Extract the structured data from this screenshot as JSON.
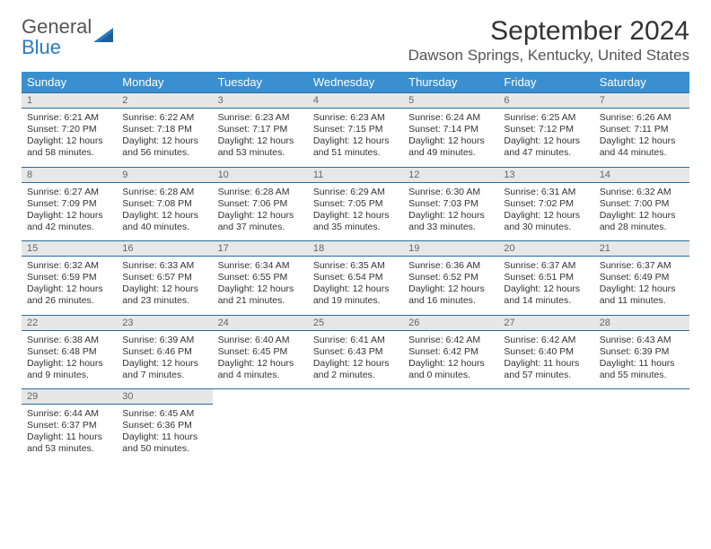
{
  "brand": {
    "name_part1": "General",
    "name_part2": "Blue"
  },
  "title": "September 2024",
  "location": "Dawson Springs, Kentucky, United States",
  "header_color": "#3a8fd0",
  "daynum_bg": "#e7e7e7",
  "border_color": "#2a6b9e",
  "days_of_week": [
    "Sunday",
    "Monday",
    "Tuesday",
    "Wednesday",
    "Thursday",
    "Friday",
    "Saturday"
  ],
  "weeks": [
    [
      {
        "day": "1",
        "sunrise": "Sunrise: 6:21 AM",
        "sunset": "Sunset: 7:20 PM",
        "daylight1": "Daylight: 12 hours",
        "daylight2": "and 58 minutes."
      },
      {
        "day": "2",
        "sunrise": "Sunrise: 6:22 AM",
        "sunset": "Sunset: 7:18 PM",
        "daylight1": "Daylight: 12 hours",
        "daylight2": "and 56 minutes."
      },
      {
        "day": "3",
        "sunrise": "Sunrise: 6:23 AM",
        "sunset": "Sunset: 7:17 PM",
        "daylight1": "Daylight: 12 hours",
        "daylight2": "and 53 minutes."
      },
      {
        "day": "4",
        "sunrise": "Sunrise: 6:23 AM",
        "sunset": "Sunset: 7:15 PM",
        "daylight1": "Daylight: 12 hours",
        "daylight2": "and 51 minutes."
      },
      {
        "day": "5",
        "sunrise": "Sunrise: 6:24 AM",
        "sunset": "Sunset: 7:14 PM",
        "daylight1": "Daylight: 12 hours",
        "daylight2": "and 49 minutes."
      },
      {
        "day": "6",
        "sunrise": "Sunrise: 6:25 AM",
        "sunset": "Sunset: 7:12 PM",
        "daylight1": "Daylight: 12 hours",
        "daylight2": "and 47 minutes."
      },
      {
        "day": "7",
        "sunrise": "Sunrise: 6:26 AM",
        "sunset": "Sunset: 7:11 PM",
        "daylight1": "Daylight: 12 hours",
        "daylight2": "and 44 minutes."
      }
    ],
    [
      {
        "day": "8",
        "sunrise": "Sunrise: 6:27 AM",
        "sunset": "Sunset: 7:09 PM",
        "daylight1": "Daylight: 12 hours",
        "daylight2": "and 42 minutes."
      },
      {
        "day": "9",
        "sunrise": "Sunrise: 6:28 AM",
        "sunset": "Sunset: 7:08 PM",
        "daylight1": "Daylight: 12 hours",
        "daylight2": "and 40 minutes."
      },
      {
        "day": "10",
        "sunrise": "Sunrise: 6:28 AM",
        "sunset": "Sunset: 7:06 PM",
        "daylight1": "Daylight: 12 hours",
        "daylight2": "and 37 minutes."
      },
      {
        "day": "11",
        "sunrise": "Sunrise: 6:29 AM",
        "sunset": "Sunset: 7:05 PM",
        "daylight1": "Daylight: 12 hours",
        "daylight2": "and 35 minutes."
      },
      {
        "day": "12",
        "sunrise": "Sunrise: 6:30 AM",
        "sunset": "Sunset: 7:03 PM",
        "daylight1": "Daylight: 12 hours",
        "daylight2": "and 33 minutes."
      },
      {
        "day": "13",
        "sunrise": "Sunrise: 6:31 AM",
        "sunset": "Sunset: 7:02 PM",
        "daylight1": "Daylight: 12 hours",
        "daylight2": "and 30 minutes."
      },
      {
        "day": "14",
        "sunrise": "Sunrise: 6:32 AM",
        "sunset": "Sunset: 7:00 PM",
        "daylight1": "Daylight: 12 hours",
        "daylight2": "and 28 minutes."
      }
    ],
    [
      {
        "day": "15",
        "sunrise": "Sunrise: 6:32 AM",
        "sunset": "Sunset: 6:59 PM",
        "daylight1": "Daylight: 12 hours",
        "daylight2": "and 26 minutes."
      },
      {
        "day": "16",
        "sunrise": "Sunrise: 6:33 AM",
        "sunset": "Sunset: 6:57 PM",
        "daylight1": "Daylight: 12 hours",
        "daylight2": "and 23 minutes."
      },
      {
        "day": "17",
        "sunrise": "Sunrise: 6:34 AM",
        "sunset": "Sunset: 6:55 PM",
        "daylight1": "Daylight: 12 hours",
        "daylight2": "and 21 minutes."
      },
      {
        "day": "18",
        "sunrise": "Sunrise: 6:35 AM",
        "sunset": "Sunset: 6:54 PM",
        "daylight1": "Daylight: 12 hours",
        "daylight2": "and 19 minutes."
      },
      {
        "day": "19",
        "sunrise": "Sunrise: 6:36 AM",
        "sunset": "Sunset: 6:52 PM",
        "daylight1": "Daylight: 12 hours",
        "daylight2": "and 16 minutes."
      },
      {
        "day": "20",
        "sunrise": "Sunrise: 6:37 AM",
        "sunset": "Sunset: 6:51 PM",
        "daylight1": "Daylight: 12 hours",
        "daylight2": "and 14 minutes."
      },
      {
        "day": "21",
        "sunrise": "Sunrise: 6:37 AM",
        "sunset": "Sunset: 6:49 PM",
        "daylight1": "Daylight: 12 hours",
        "daylight2": "and 11 minutes."
      }
    ],
    [
      {
        "day": "22",
        "sunrise": "Sunrise: 6:38 AM",
        "sunset": "Sunset: 6:48 PM",
        "daylight1": "Daylight: 12 hours",
        "daylight2": "and 9 minutes."
      },
      {
        "day": "23",
        "sunrise": "Sunrise: 6:39 AM",
        "sunset": "Sunset: 6:46 PM",
        "daylight1": "Daylight: 12 hours",
        "daylight2": "and 7 minutes."
      },
      {
        "day": "24",
        "sunrise": "Sunrise: 6:40 AM",
        "sunset": "Sunset: 6:45 PM",
        "daylight1": "Daylight: 12 hours",
        "daylight2": "and 4 minutes."
      },
      {
        "day": "25",
        "sunrise": "Sunrise: 6:41 AM",
        "sunset": "Sunset: 6:43 PM",
        "daylight1": "Daylight: 12 hours",
        "daylight2": "and 2 minutes."
      },
      {
        "day": "26",
        "sunrise": "Sunrise: 6:42 AM",
        "sunset": "Sunset: 6:42 PM",
        "daylight1": "Daylight: 12 hours",
        "daylight2": "and 0 minutes."
      },
      {
        "day": "27",
        "sunrise": "Sunrise: 6:42 AM",
        "sunset": "Sunset: 6:40 PM",
        "daylight1": "Daylight: 11 hours",
        "daylight2": "and 57 minutes."
      },
      {
        "day": "28",
        "sunrise": "Sunrise: 6:43 AM",
        "sunset": "Sunset: 6:39 PM",
        "daylight1": "Daylight: 11 hours",
        "daylight2": "and 55 minutes."
      }
    ],
    [
      {
        "day": "29",
        "sunrise": "Sunrise: 6:44 AM",
        "sunset": "Sunset: 6:37 PM",
        "daylight1": "Daylight: 11 hours",
        "daylight2": "and 53 minutes."
      },
      {
        "day": "30",
        "sunrise": "Sunrise: 6:45 AM",
        "sunset": "Sunset: 6:36 PM",
        "daylight1": "Daylight: 11 hours",
        "daylight2": "and 50 minutes."
      },
      null,
      null,
      null,
      null,
      null
    ]
  ]
}
